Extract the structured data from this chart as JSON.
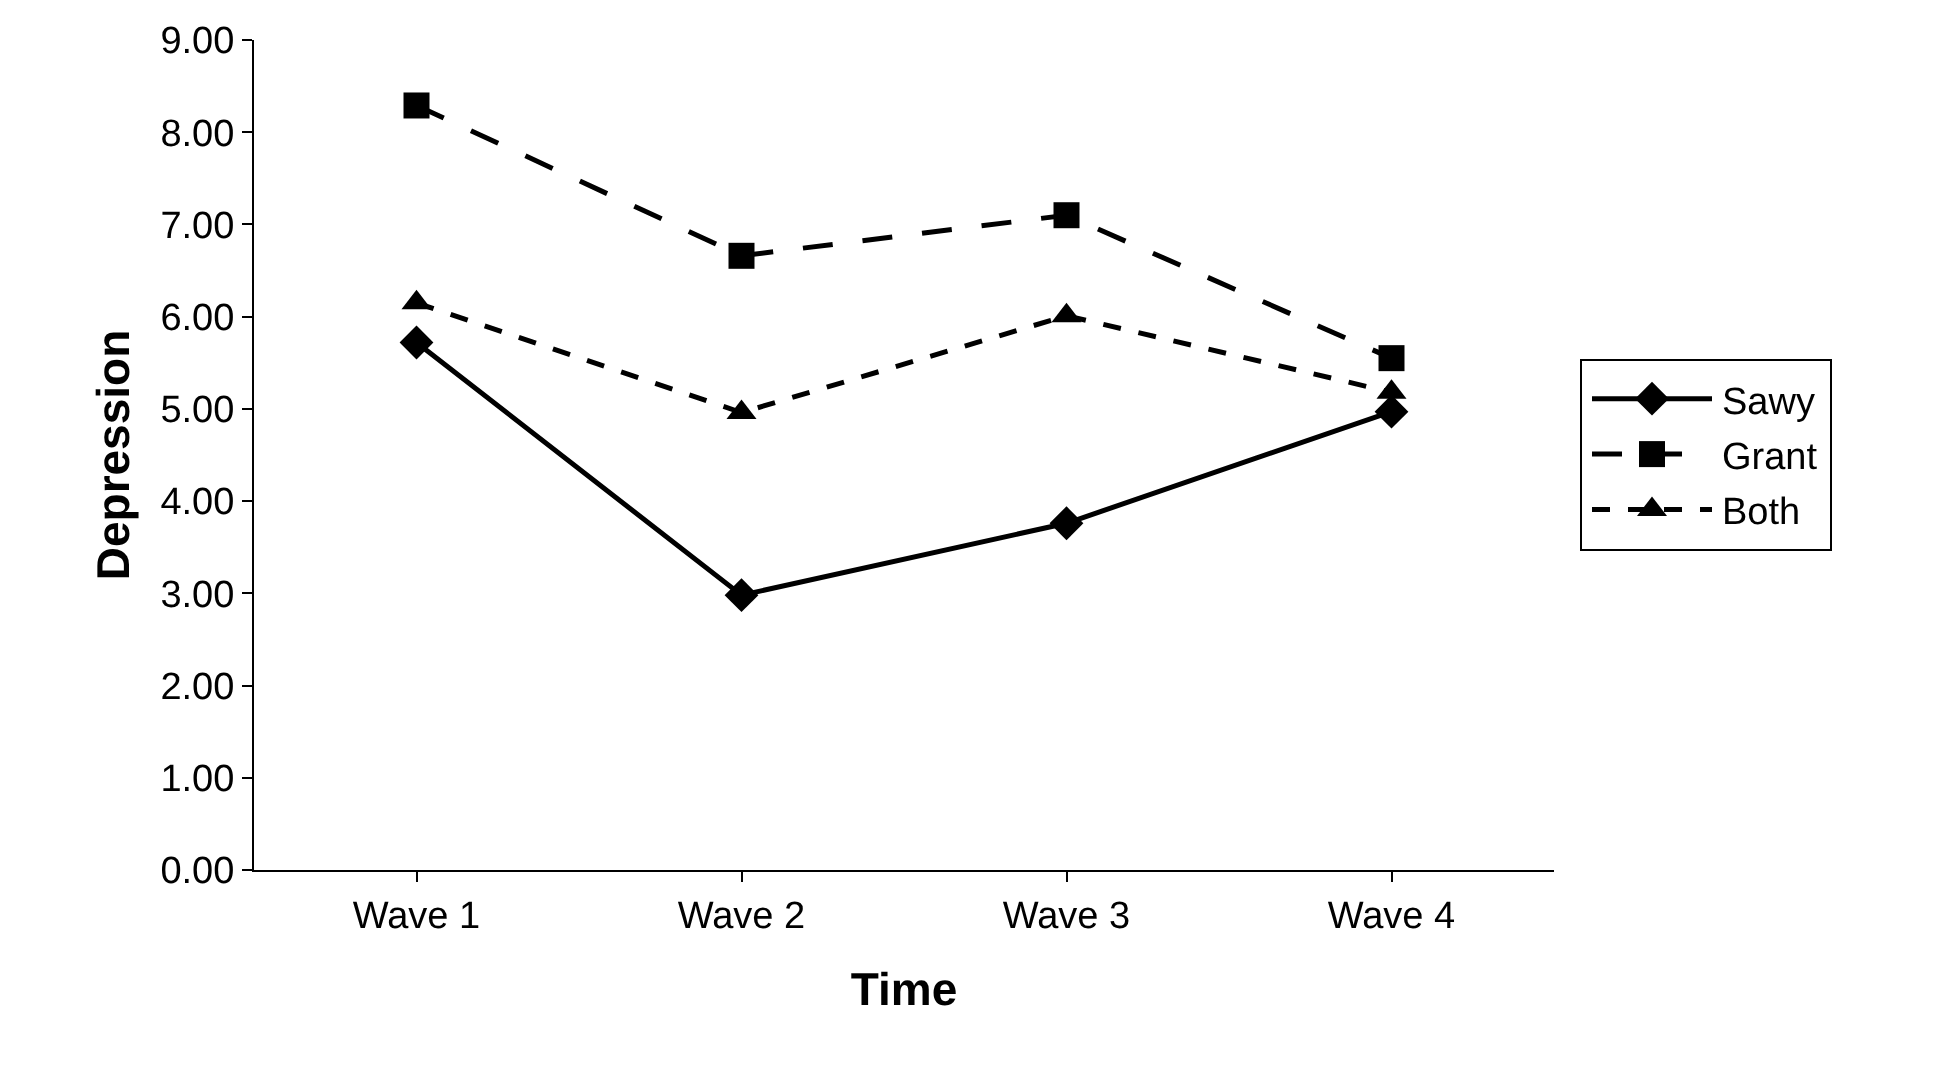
{
  "chart_data": {
    "type": "line",
    "xlabel": "Time",
    "ylabel": "Depression",
    "categories": [
      "Wave 1",
      "Wave 2",
      "Wave 3",
      "Wave 4"
    ],
    "series": [
      {
        "name": "Sawy",
        "color": "#000000",
        "values": [
          5.72,
          2.98,
          3.76,
          4.97
        ],
        "marker": "diamond",
        "line_style": "solid"
      },
      {
        "name": "Grant",
        "color": "#000000",
        "values": [
          8.29,
          6.66,
          7.1,
          5.55
        ],
        "marker": "square",
        "line_style": "dashed"
      },
      {
        "name": "Both",
        "color": "#000000",
        "values": [
          6.15,
          4.96,
          6.01,
          5.18
        ],
        "marker": "triangle",
        "line_style": "dotted"
      }
    ],
    "ylim": [
      0,
      9
    ],
    "yticks": [
      {
        "value": 0,
        "label": "0.00"
      },
      {
        "value": 1,
        "label": "1.00"
      },
      {
        "value": 2,
        "label": "2.00"
      },
      {
        "value": 3,
        "label": "3.00"
      },
      {
        "value": 4,
        "label": "4.00"
      },
      {
        "value": 5,
        "label": "5.00"
      },
      {
        "value": 6,
        "label": "6.00"
      },
      {
        "value": 7,
        "label": "7.00"
      },
      {
        "value": 8,
        "label": "8.00"
      },
      {
        "value": 9,
        "label": "9.00"
      }
    ],
    "grid": false,
    "legend": "right"
  }
}
